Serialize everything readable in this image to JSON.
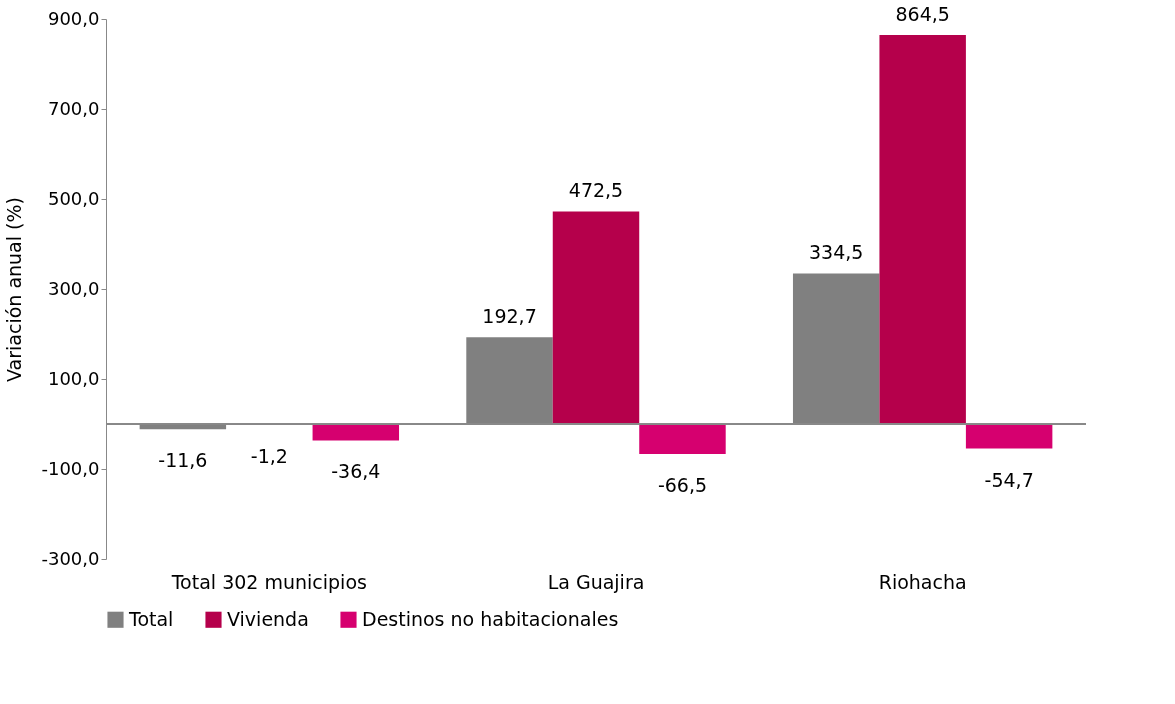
{
  "chart_data": {
    "type": "bar",
    "ylabel": "Variación anual (%)",
    "categories": [
      "Total 302 municipios",
      "La Guajira",
      "Riohacha"
    ],
    "series": [
      {
        "name": "Total",
        "color": "#808080",
        "values": [
          -11.6,
          192.7,
          334.5
        ],
        "value_labels": [
          "-11,6",
          "192,7",
          "334,5"
        ]
      },
      {
        "name": "Vivienda",
        "color": "#b5004b",
        "values": [
          -1.2,
          472.5,
          864.5
        ],
        "value_labels": [
          "-1,2",
          "472,5",
          "864,5"
        ]
      },
      {
        "name": "Destinos no habitacionales",
        "color": "#d6006f",
        "values": [
          -36.4,
          -66.5,
          -54.7
        ],
        "value_labels": [
          "-36,4",
          "-66,5",
          "-54,7"
        ]
      }
    ],
    "ylim": [
      -300,
      900
    ],
    "yticks": [
      {
        "value": -300,
        "label": "-300,0"
      },
      {
        "value": -100,
        "label": "-100,0"
      },
      {
        "value": 100,
        "label": "100,0"
      },
      {
        "value": 300,
        "label": "300,0"
      },
      {
        "value": 500,
        "label": "500,0"
      },
      {
        "value": 700,
        "label": "700,0"
      },
      {
        "value": 900,
        "label": "900,0"
      }
    ],
    "grid": false,
    "legend": "bottom"
  }
}
